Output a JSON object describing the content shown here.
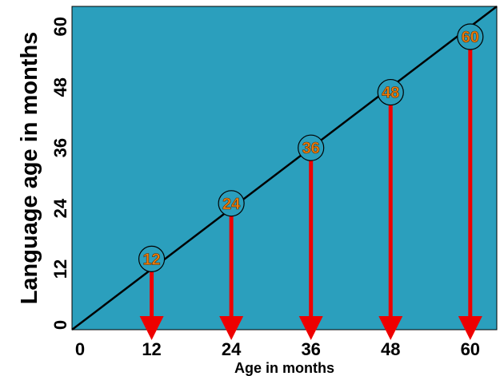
{
  "chart_data": {
    "type": "line",
    "xlabel": "Age in months",
    "ylabel": "Language age in months",
    "xlim": [
      0,
      64
    ],
    "ylim": [
      0,
      64
    ],
    "x_ticks": [
      0,
      12,
      24,
      36,
      48,
      60
    ],
    "y_ticks": [
      0,
      12,
      24,
      36,
      48,
      60
    ],
    "grid": false,
    "line": {
      "x": [
        0,
        64
      ],
      "y": [
        0,
        64
      ]
    },
    "markers": [
      {
        "x": 12,
        "y": 14,
        "label": "12"
      },
      {
        "x": 24,
        "y": 25,
        "label": "24"
      },
      {
        "x": 36,
        "y": 36,
        "label": "36"
      },
      {
        "x": 48,
        "y": 47,
        "label": "48"
      },
      {
        "x": 60,
        "y": 58,
        "label": "60"
      }
    ],
    "colors": {
      "plot_background": "#2b9fbd",
      "line": "#000000",
      "arrow": "#ee0000",
      "marker_text": "#f07d0a",
      "marker_fill": "#2b9fbd",
      "marker_stroke": "#000000"
    }
  }
}
